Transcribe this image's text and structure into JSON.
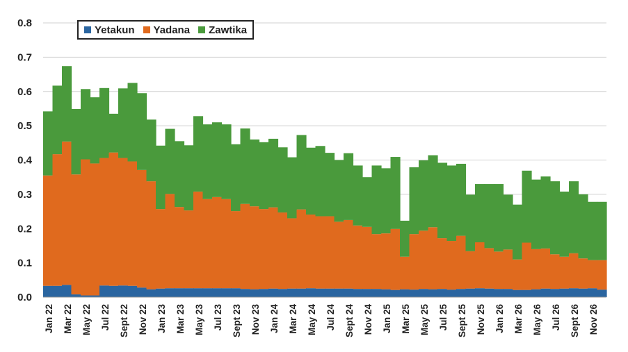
{
  "chart_data": {
    "type": "bar",
    "stacked": true,
    "grid": true,
    "legend_position": "top-left",
    "ylim": [
      0,
      0.8
    ],
    "yticks": [
      "0.0",
      "0.1",
      "0.2",
      "0.3",
      "0.4",
      "0.5",
      "0.6",
      "0.7",
      "0.8"
    ],
    "x_tick_labels": [
      "Jan 22",
      "Mar 22",
      "May 22",
      "Jul 22",
      "Sept 22",
      "Nov 22",
      "Jan 23",
      "Mar 23",
      "May 23",
      "Jul 23",
      "Sept 23",
      "Nov 23",
      "Jan 24",
      "Mar 24",
      "May 24",
      "Jul 24",
      "Sept 24",
      "Nov 24",
      "Jan 25",
      "Mar 25",
      "May 25",
      "Jul 25",
      "Sept 25",
      "Nov 25",
      "Jan 26",
      "Mar 26",
      "May 26",
      "Jul 26",
      "Sept 26",
      "Nov 26"
    ],
    "series": [
      {
        "name": "Yetakun",
        "color": "#2a65a0",
        "values": [
          0.033,
          0.033,
          0.036,
          0.008,
          0.005,
          0.005,
          0.034,
          0.033,
          0.034,
          0.033,
          0.028,
          0.023,
          0.025,
          0.026,
          0.026,
          0.026,
          0.026,
          0.026,
          0.026,
          0.026,
          0.026,
          0.024,
          0.023,
          0.024,
          0.025,
          0.024,
          0.025,
          0.025,
          0.026,
          0.025,
          0.025,
          0.025,
          0.025,
          0.024,
          0.024,
          0.024,
          0.023,
          0.021,
          0.023,
          0.022,
          0.024,
          0.023,
          0.024,
          0.022,
          0.024,
          0.025,
          0.026,
          0.025,
          0.024,
          0.024,
          0.021,
          0.021,
          0.023,
          0.025,
          0.024,
          0.025,
          0.026,
          0.025,
          0.026,
          0.022
        ]
      },
      {
        "name": "Yadana",
        "color": "#e06a1e",
        "values": [
          0.322,
          0.384,
          0.418,
          0.35,
          0.397,
          0.385,
          0.372,
          0.389,
          0.372,
          0.363,
          0.343,
          0.315,
          0.232,
          0.275,
          0.237,
          0.227,
          0.282,
          0.26,
          0.266,
          0.26,
          0.225,
          0.248,
          0.242,
          0.233,
          0.237,
          0.223,
          0.205,
          0.231,
          0.215,
          0.211,
          0.211,
          0.195,
          0.2,
          0.185,
          0.181,
          0.16,
          0.163,
          0.178,
          0.095,
          0.162,
          0.17,
          0.181,
          0.148,
          0.142,
          0.155,
          0.109,
          0.134,
          0.118,
          0.109,
          0.115,
          0.089,
          0.138,
          0.117,
          0.117,
          0.101,
          0.093,
          0.102,
          0.088,
          0.082,
          0.086
        ]
      },
      {
        "name": "Zawtika",
        "color": "#4a9a3c",
        "values": [
          0.187,
          0.2,
          0.22,
          0.191,
          0.205,
          0.193,
          0.204,
          0.113,
          0.203,
          0.229,
          0.224,
          0.18,
          0.185,
          0.19,
          0.192,
          0.19,
          0.22,
          0.218,
          0.218,
          0.218,
          0.195,
          0.22,
          0.195,
          0.195,
          0.2,
          0.19,
          0.178,
          0.217,
          0.195,
          0.205,
          0.185,
          0.18,
          0.195,
          0.175,
          0.145,
          0.2,
          0.19,
          0.21,
          0.105,
          0.195,
          0.205,
          0.21,
          0.22,
          0.22,
          0.21,
          0.165,
          0.17,
          0.187,
          0.197,
          0.16,
          0.16,
          0.21,
          0.203,
          0.21,
          0.213,
          0.19,
          0.21,
          0.187,
          0.17,
          0.17
        ]
      }
    ]
  }
}
